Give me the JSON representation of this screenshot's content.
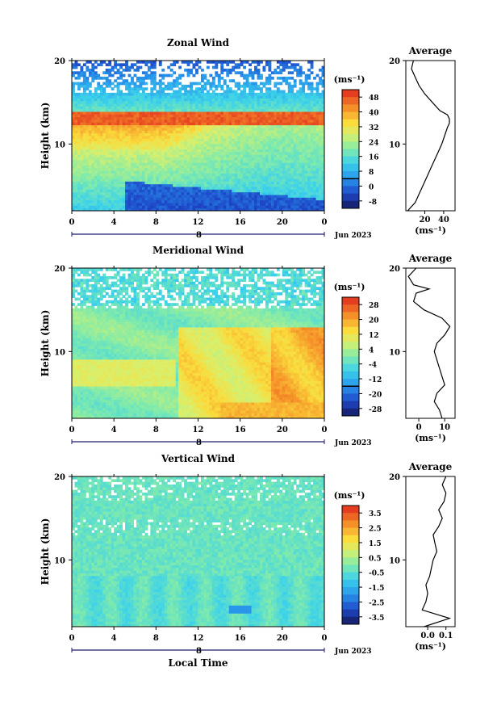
{
  "figure": {
    "date_label": "Jun 2023",
    "xlabel": "Local Time",
    "units": "(ms⁻¹)"
  },
  "chart_data": [
    {
      "type": "heatmap",
      "title": "Zonal Wind",
      "ylabel": "Height (km)",
      "xlabel": "",
      "x_range": [
        0,
        24
      ],
      "x_ticks": [
        "0",
        "4",
        "8",
        "12",
        "16",
        "20",
        "0"
      ],
      "day_label": "8",
      "y_range": [
        2,
        20
      ],
      "y_ticks": [
        "10",
        "20"
      ],
      "colorbar": {
        "units": "(ms⁻¹)",
        "ticks": [
          "48",
          "40",
          "32",
          "24",
          "16",
          "8",
          "0",
          "-8"
        ],
        "range": [
          -12,
          52
        ]
      },
      "contour_level": 0,
      "description_values": {
        "jet_peak_height_km": 13,
        "jet_peak_speed": 48
      },
      "profile": {
        "title": "Average",
        "x_ticks": [
          "20",
          "40"
        ],
        "x_range": [
          0,
          52
        ],
        "heights": [
          2,
          3,
          4,
          5,
          6,
          7,
          8,
          9,
          10,
          11,
          12,
          12.5,
          13,
          13.5,
          14,
          15,
          16,
          17,
          18,
          19,
          20
        ],
        "values": [
          2,
          10,
          14,
          18,
          22,
          26,
          30,
          34,
          38,
          41,
          44,
          46,
          46,
          44,
          36,
          28,
          20,
          14,
          10,
          6,
          8
        ]
      }
    },
    {
      "type": "heatmap",
      "title": "Meridional Wind",
      "ylabel": "Height (km)",
      "xlabel": "",
      "x_range": [
        0,
        24
      ],
      "x_ticks": [
        "0",
        "4",
        "8",
        "12",
        "16",
        "20",
        "0"
      ],
      "day_label": "8",
      "y_range": [
        2,
        20
      ],
      "y_ticks": [
        "10",
        "20"
      ],
      "colorbar": {
        "units": "(ms⁻¹)",
        "ticks": [
          "28",
          "20",
          "12",
          "4",
          "-4",
          "-12",
          "-20",
          "-28"
        ],
        "range": [
          -32,
          32
        ]
      },
      "contour_level": 0,
      "profile": {
        "title": "Average",
        "x_ticks": [
          "0",
          "10"
        ],
        "x_range": [
          -5,
          14
        ],
        "heights": [
          2,
          3,
          4,
          5,
          6,
          7,
          8,
          9,
          10,
          11,
          12,
          13,
          14,
          15,
          16,
          17,
          17.5,
          18,
          19,
          20
        ],
        "values": [
          9,
          8,
          6,
          7,
          10,
          9,
          8,
          7,
          6,
          7,
          10,
          12,
          9,
          2,
          -2,
          -1,
          4,
          -2,
          -4,
          -1
        ]
      }
    },
    {
      "type": "heatmap",
      "title": "Vertical Wind",
      "ylabel": "Height (km)",
      "xlabel": "Local Time",
      "x_range": [
        0,
        24
      ],
      "x_ticks": [
        "0",
        "4",
        "8",
        "12",
        "16",
        "20",
        "0"
      ],
      "day_label": "8",
      "y_range": [
        2,
        20
      ],
      "y_ticks": [
        "10",
        "20"
      ],
      "colorbar": {
        "units": "(ms⁻¹)",
        "ticks": [
          "3.5",
          "2.5",
          "1.5",
          "0.5",
          "-0.5",
          "-1.5",
          "-2.5",
          "-3.5"
        ],
        "range": [
          -4,
          4
        ]
      },
      "profile": {
        "title": "Average",
        "x_ticks": [
          "0.0",
          "0.1"
        ],
        "x_range": [
          -0.12,
          0.15
        ],
        "heights": [
          2,
          3,
          4,
          5,
          6,
          7,
          8,
          9,
          10,
          11,
          12,
          13,
          14,
          15,
          16,
          17,
          18,
          19,
          20
        ],
        "values": [
          -0.02,
          0.12,
          -0.03,
          -0.01,
          0.0,
          -0.01,
          0.01,
          0.02,
          0.03,
          0.05,
          0.04,
          0.03,
          0.06,
          0.08,
          0.06,
          0.09,
          0.1,
          0.08,
          0.1
        ]
      }
    }
  ]
}
